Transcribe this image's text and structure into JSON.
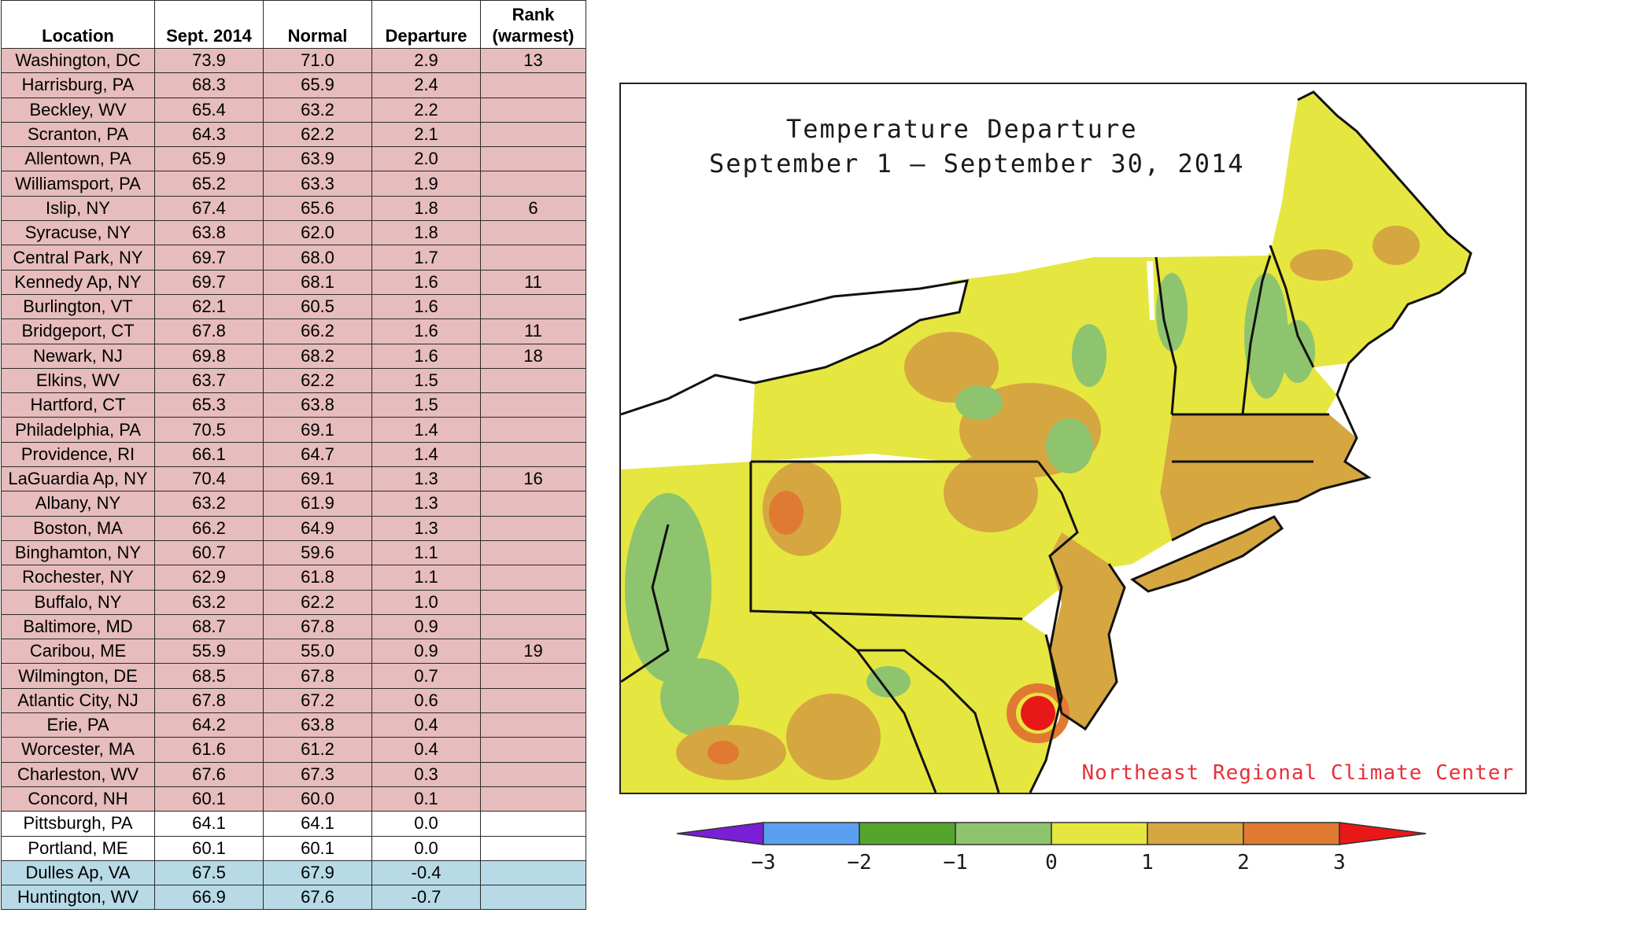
{
  "table": {
    "headers": {
      "location": "Location",
      "sept": "Sept. 2014",
      "normal": "Normal",
      "departure": "Departure",
      "rank_line1": "Rank",
      "rank_line2": "(warmest)"
    },
    "rows": [
      {
        "loc": "Washington, DC",
        "sept": "73.9",
        "normal": "71.0",
        "dep": "2.9",
        "rank": "13",
        "cls": "warm"
      },
      {
        "loc": "Harrisburg, PA",
        "sept": "68.3",
        "normal": "65.9",
        "dep": "2.4",
        "rank": "",
        "cls": "warm"
      },
      {
        "loc": "Beckley, WV",
        "sept": "65.4",
        "normal": "63.2",
        "dep": "2.2",
        "rank": "",
        "cls": "warm"
      },
      {
        "loc": "Scranton, PA",
        "sept": "64.3",
        "normal": "62.2",
        "dep": "2.1",
        "rank": "",
        "cls": "warm"
      },
      {
        "loc": "Allentown, PA",
        "sept": "65.9",
        "normal": "63.9",
        "dep": "2.0",
        "rank": "",
        "cls": "warm"
      },
      {
        "loc": "Williamsport, PA",
        "sept": "65.2",
        "normal": "63.3",
        "dep": "1.9",
        "rank": "",
        "cls": "warm"
      },
      {
        "loc": "Islip, NY",
        "sept": "67.4",
        "normal": "65.6",
        "dep": "1.8",
        "rank": "6",
        "cls": "warm"
      },
      {
        "loc": "Syracuse, NY",
        "sept": "63.8",
        "normal": "62.0",
        "dep": "1.8",
        "rank": "",
        "cls": "warm"
      },
      {
        "loc": "Central Park, NY",
        "sept": "69.7",
        "normal": "68.0",
        "dep": "1.7",
        "rank": "",
        "cls": "warm"
      },
      {
        "loc": "Kennedy Ap, NY",
        "sept": "69.7",
        "normal": "68.1",
        "dep": "1.6",
        "rank": "11",
        "cls": "warm"
      },
      {
        "loc": "Burlington, VT",
        "sept": "62.1",
        "normal": "60.5",
        "dep": "1.6",
        "rank": "",
        "cls": "warm"
      },
      {
        "loc": "Bridgeport, CT",
        "sept": "67.8",
        "normal": "66.2",
        "dep": "1.6",
        "rank": "11",
        "cls": "warm"
      },
      {
        "loc": "Newark, NJ",
        "sept": "69.8",
        "normal": "68.2",
        "dep": "1.6",
        "rank": "18",
        "cls": "warm"
      },
      {
        "loc": "Elkins, WV",
        "sept": "63.7",
        "normal": "62.2",
        "dep": "1.5",
        "rank": "",
        "cls": "warm"
      },
      {
        "loc": "Hartford, CT",
        "sept": "65.3",
        "normal": "63.8",
        "dep": "1.5",
        "rank": "",
        "cls": "warm"
      },
      {
        "loc": "Philadelphia, PA",
        "sept": "70.5",
        "normal": "69.1",
        "dep": "1.4",
        "rank": "",
        "cls": "warm"
      },
      {
        "loc": "Providence, RI",
        "sept": "66.1",
        "normal": "64.7",
        "dep": "1.4",
        "rank": "",
        "cls": "warm"
      },
      {
        "loc": "LaGuardia Ap, NY",
        "sept": "70.4",
        "normal": "69.1",
        "dep": "1.3",
        "rank": "16",
        "cls": "warm"
      },
      {
        "loc": "Albany, NY",
        "sept": "63.2",
        "normal": "61.9",
        "dep": "1.3",
        "rank": "",
        "cls": "warm"
      },
      {
        "loc": "Boston, MA",
        "sept": "66.2",
        "normal": "64.9",
        "dep": "1.3",
        "rank": "",
        "cls": "warm"
      },
      {
        "loc": "Binghamton, NY",
        "sept": "60.7",
        "normal": "59.6",
        "dep": "1.1",
        "rank": "",
        "cls": "warm"
      },
      {
        "loc": "Rochester, NY",
        "sept": "62.9",
        "normal": "61.8",
        "dep": "1.1",
        "rank": "",
        "cls": "warm"
      },
      {
        "loc": "Buffalo, NY",
        "sept": "63.2",
        "normal": "62.2",
        "dep": "1.0",
        "rank": "",
        "cls": "warm"
      },
      {
        "loc": "Baltimore, MD",
        "sept": "68.7",
        "normal": "67.8",
        "dep": "0.9",
        "rank": "",
        "cls": "warm"
      },
      {
        "loc": "Caribou, ME",
        "sept": "55.9",
        "normal": "55.0",
        "dep": "0.9",
        "rank": "19",
        "cls": "warm"
      },
      {
        "loc": "Wilmington, DE",
        "sept": "68.5",
        "normal": "67.8",
        "dep": "0.7",
        "rank": "",
        "cls": "warm"
      },
      {
        "loc": "Atlantic City, NJ",
        "sept": "67.8",
        "normal": "67.2",
        "dep": "0.6",
        "rank": "",
        "cls": "warm"
      },
      {
        "loc": "Erie, PA",
        "sept": "64.2",
        "normal": "63.8",
        "dep": "0.4",
        "rank": "",
        "cls": "warm"
      },
      {
        "loc": "Worcester, MA",
        "sept": "61.6",
        "normal": "61.2",
        "dep": "0.4",
        "rank": "",
        "cls": "warm"
      },
      {
        "loc": "Charleston, WV",
        "sept": "67.6",
        "normal": "67.3",
        "dep": "0.3",
        "rank": "",
        "cls": "warm"
      },
      {
        "loc": "Concord, NH",
        "sept": "60.1",
        "normal": "60.0",
        "dep": "0.1",
        "rank": "",
        "cls": "warm"
      },
      {
        "loc": "Pittsburgh, PA",
        "sept": "64.1",
        "normal": "64.1",
        "dep": "0.0",
        "rank": "",
        "cls": "norm"
      },
      {
        "loc": "Portland, ME",
        "sept": "60.1",
        "normal": "60.1",
        "dep": "0.0",
        "rank": "",
        "cls": "norm"
      },
      {
        "loc": "Dulles Ap, VA",
        "sept": "67.5",
        "normal": "67.9",
        "dep": "-0.4",
        "rank": "",
        "cls": "cool"
      },
      {
        "loc": "Huntington, WV",
        "sept": "66.9",
        "normal": "67.6",
        "dep": "-0.7",
        "rank": "",
        "cls": "cool"
      }
    ]
  },
  "map": {
    "title_line1": "Temperature Departure",
    "title_line2": "September 1 — September 30, 2014",
    "credit": "Northeast Regional Climate Center"
  },
  "legend": {
    "bins": [
      {
        "from": -4,
        "to": -3,
        "color": "#7a1fd6"
      },
      {
        "from": -3,
        "to": -2,
        "color": "#5aa0f0"
      },
      {
        "from": -2,
        "to": -1,
        "color": "#55a52c"
      },
      {
        "from": -1,
        "to": 0,
        "color": "#8ec46e"
      },
      {
        "from": 0,
        "to": 1,
        "color": "#e6e640"
      },
      {
        "from": 1,
        "to": 2,
        "color": "#d6a640"
      },
      {
        "from": 2,
        "to": 3,
        "color": "#e07a32"
      },
      {
        "from": 3,
        "to": 4,
        "color": "#e81818"
      }
    ],
    "ticks": [
      "−3",
      "−2",
      "−1",
      "0",
      "1",
      "2",
      "3"
    ]
  },
  "colors": {
    "warm_row": "#e6bcbc",
    "cool_row": "#b7dae6",
    "credit": "#e8303a"
  }
}
